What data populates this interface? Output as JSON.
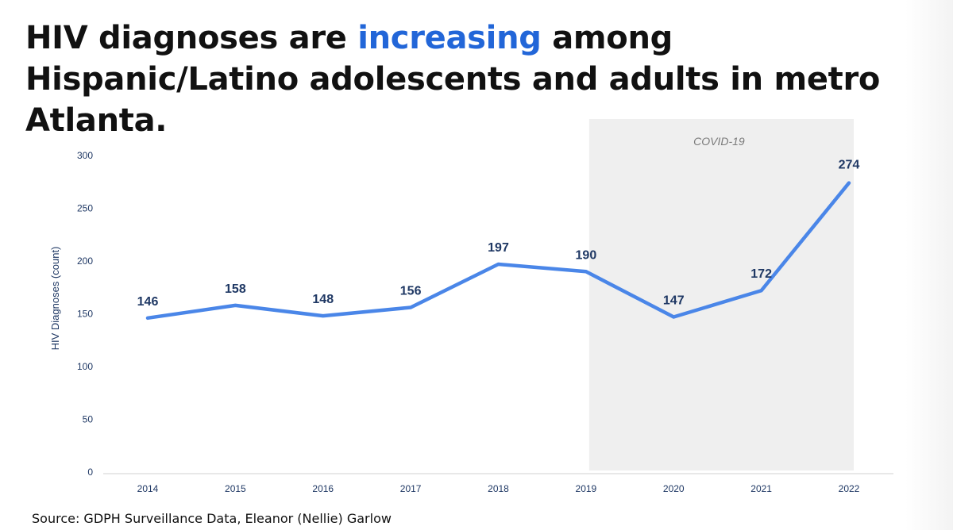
{
  "slide": {
    "title_part1": "HIV diagnoses are ",
    "title_highlight": "increasing",
    "title_part2": " among Hispanic/Latino adolescents and adults in metro Atlanta.",
    "source": "Source: GDPH Surveillance Data, Eleanor (Nellie) Garlow"
  },
  "colors": {
    "line": "#4a86e8",
    "highlight": "#2266d8",
    "shade": "#efefef",
    "axis_text": "#1f3864"
  },
  "chart_data": {
    "type": "line",
    "title": "HIV diagnoses are increasing among Hispanic/Latino adolescents and adults in metro Atlanta.",
    "xlabel": "",
    "ylabel": "HIV Diagnoses (count)",
    "categories": [
      "2014",
      "2015",
      "2016",
      "2017",
      "2018",
      "2019",
      "2020",
      "2021",
      "2022"
    ],
    "series": [
      {
        "name": "HIV Diagnoses",
        "values": [
          146,
          158,
          148,
          156,
          197,
          190,
          147,
          172,
          274
        ],
        "labels": [
          "146",
          "158",
          "148",
          "156",
          "197",
          "190",
          "147",
          "172",
          "274"
        ]
      }
    ],
    "ylim": [
      0,
      300
    ],
    "yticks": [
      0,
      50,
      100,
      150,
      200,
      250,
      300
    ],
    "ytick_labels": [
      "0",
      "50",
      "100",
      "150",
      "200",
      "250",
      "300"
    ],
    "grid": false,
    "shaded_region": {
      "label": "COVID-19",
      "start": "2019",
      "end": "2022"
    }
  }
}
